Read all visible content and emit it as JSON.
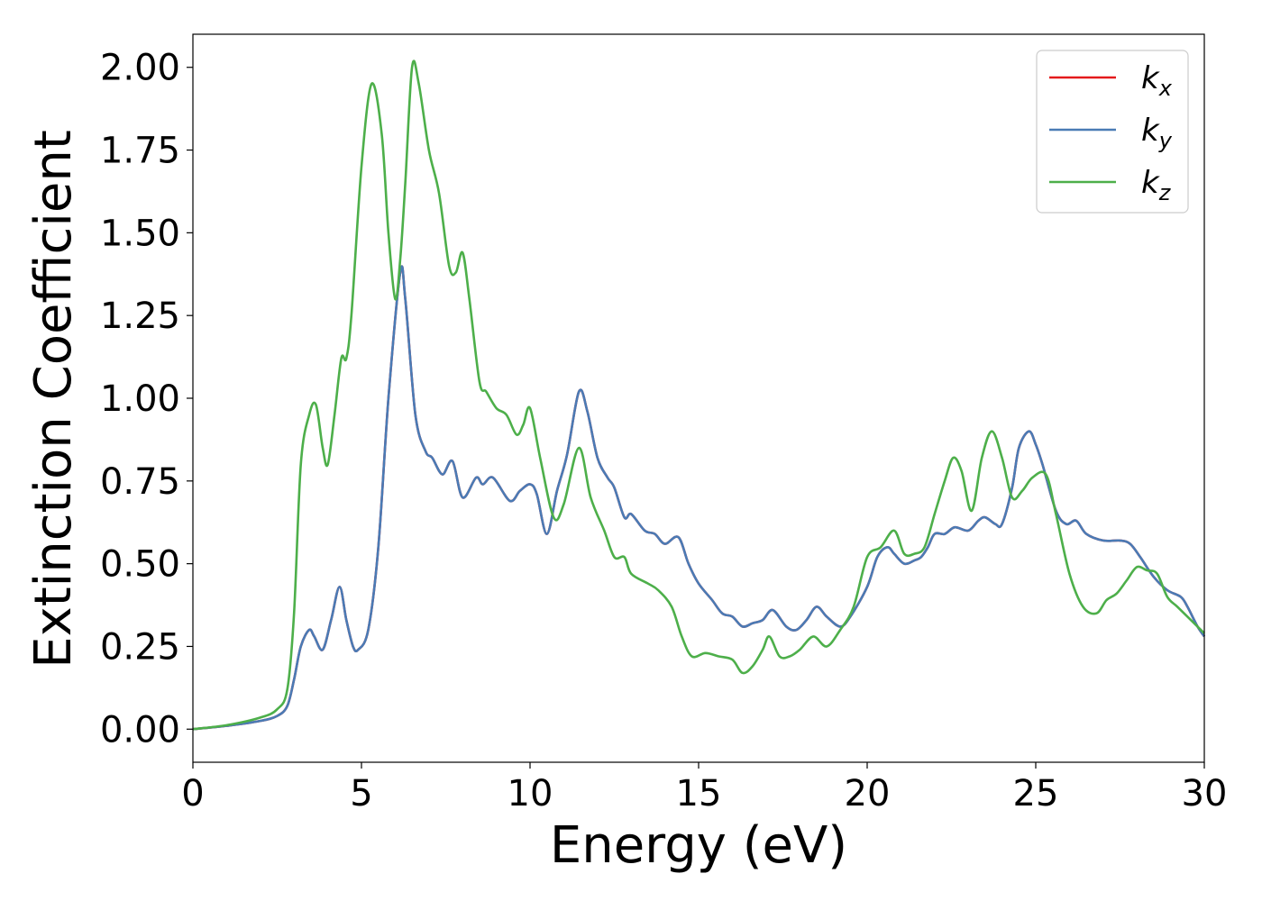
{
  "chart_data": {
    "type": "line",
    "xlabel": "Energy (eV)",
    "ylabel": "Extinction Coefficient",
    "xlim": [
      0,
      30
    ],
    "ylim": [
      -0.1,
      2.1
    ],
    "xticks": [
      0,
      5,
      10,
      15,
      20,
      25,
      30
    ],
    "xtick_labels": [
      "0",
      "5",
      "10",
      "15",
      "20",
      "25",
      "30"
    ],
    "yticks": [
      0,
      0.25,
      0.5,
      0.75,
      1.0,
      1.25,
      1.5,
      1.75,
      2.0
    ],
    "ytick_labels": [
      "0.00",
      "0.25",
      "0.50",
      "0.75",
      "1.00",
      "1.25",
      "1.50",
      "1.75",
      "2.00"
    ],
    "grid": false,
    "legend_position": "top-right",
    "series": [
      {
        "name": "kx",
        "base": "k",
        "sub": "x",
        "color": "#e41a1c",
        "x": [
          0,
          1,
          2,
          2.5,
          2.8,
          3.0,
          3.2,
          3.45,
          3.6,
          3.85,
          4.1,
          4.35,
          4.55,
          4.75,
          4.9,
          5.2,
          5.5,
          5.8,
          6.15,
          6.3,
          6.6,
          6.9,
          7.1,
          7.4,
          7.7,
          8.0,
          8.4,
          8.6,
          8.9,
          9.4,
          9.7,
          10.0,
          10.2,
          10.5,
          10.8,
          11.1,
          11.45,
          11.7,
          12.0,
          12.3,
          12.5,
          12.8,
          13.0,
          13.4,
          13.7,
          14.0,
          14.4,
          14.7,
          15.0,
          15.4,
          15.7,
          16.0,
          16.3,
          16.6,
          16.9,
          17.2,
          17.6,
          17.9,
          18.2,
          18.5,
          18.8,
          19.2,
          19.5,
          20.0,
          20.3,
          20.6,
          20.8,
          21.1,
          21.4,
          21.6,
          21.8,
          22.0,
          22.3,
          22.6,
          23.0,
          23.3,
          23.5,
          23.8,
          24.0,
          24.3,
          24.5,
          24.8,
          25.0,
          25.2,
          25.6,
          25.9,
          26.2,
          26.5,
          27.0,
          27.5,
          27.8,
          28.1,
          28.5,
          28.9,
          29.3,
          29.5,
          29.8,
          30.0
        ],
        "y": [
          0.0,
          0.01,
          0.025,
          0.04,
          0.07,
          0.15,
          0.25,
          0.3,
          0.28,
          0.24,
          0.33,
          0.43,
          0.33,
          0.25,
          0.24,
          0.3,
          0.55,
          1.0,
          1.38,
          1.3,
          0.95,
          0.84,
          0.82,
          0.77,
          0.81,
          0.7,
          0.76,
          0.74,
          0.76,
          0.69,
          0.72,
          0.74,
          0.71,
          0.59,
          0.72,
          0.83,
          1.02,
          0.96,
          0.82,
          0.76,
          0.73,
          0.64,
          0.65,
          0.6,
          0.59,
          0.56,
          0.58,
          0.5,
          0.44,
          0.39,
          0.35,
          0.34,
          0.31,
          0.32,
          0.33,
          0.36,
          0.31,
          0.3,
          0.33,
          0.37,
          0.34,
          0.31,
          0.34,
          0.43,
          0.52,
          0.55,
          0.53,
          0.5,
          0.51,
          0.52,
          0.55,
          0.59,
          0.59,
          0.61,
          0.6,
          0.63,
          0.64,
          0.62,
          0.62,
          0.73,
          0.85,
          0.9,
          0.86,
          0.8,
          0.66,
          0.62,
          0.63,
          0.59,
          0.57,
          0.57,
          0.56,
          0.52,
          0.46,
          0.42,
          0.4,
          0.37,
          0.31,
          0.28
        ]
      },
      {
        "name": "ky",
        "base": "k",
        "sub": "y",
        "color": "#4a7bb5",
        "x": [
          0,
          1,
          2,
          2.5,
          2.8,
          3.0,
          3.2,
          3.45,
          3.6,
          3.85,
          4.1,
          4.35,
          4.55,
          4.75,
          4.9,
          5.2,
          5.5,
          5.8,
          6.15,
          6.3,
          6.6,
          6.9,
          7.1,
          7.4,
          7.7,
          8.0,
          8.4,
          8.6,
          8.9,
          9.4,
          9.7,
          10.0,
          10.2,
          10.5,
          10.8,
          11.1,
          11.45,
          11.7,
          12.0,
          12.3,
          12.5,
          12.8,
          13.0,
          13.4,
          13.7,
          14.0,
          14.4,
          14.7,
          15.0,
          15.4,
          15.7,
          16.0,
          16.3,
          16.6,
          16.9,
          17.2,
          17.6,
          17.9,
          18.2,
          18.5,
          18.8,
          19.2,
          19.5,
          20.0,
          20.3,
          20.6,
          20.8,
          21.1,
          21.4,
          21.6,
          21.8,
          22.0,
          22.3,
          22.6,
          23.0,
          23.3,
          23.5,
          23.8,
          24.0,
          24.3,
          24.5,
          24.8,
          25.0,
          25.2,
          25.6,
          25.9,
          26.2,
          26.5,
          27.0,
          27.5,
          27.8,
          28.1,
          28.5,
          28.9,
          29.3,
          29.5,
          29.8,
          30.0
        ],
        "y": [
          0.0,
          0.01,
          0.025,
          0.04,
          0.07,
          0.15,
          0.25,
          0.3,
          0.28,
          0.24,
          0.33,
          0.43,
          0.33,
          0.25,
          0.24,
          0.3,
          0.55,
          1.0,
          1.38,
          1.3,
          0.95,
          0.84,
          0.82,
          0.77,
          0.81,
          0.7,
          0.76,
          0.74,
          0.76,
          0.69,
          0.72,
          0.74,
          0.71,
          0.59,
          0.72,
          0.83,
          1.02,
          0.96,
          0.82,
          0.76,
          0.73,
          0.64,
          0.65,
          0.6,
          0.59,
          0.56,
          0.58,
          0.5,
          0.44,
          0.39,
          0.35,
          0.34,
          0.31,
          0.32,
          0.33,
          0.36,
          0.31,
          0.3,
          0.33,
          0.37,
          0.34,
          0.31,
          0.34,
          0.43,
          0.52,
          0.55,
          0.53,
          0.5,
          0.51,
          0.52,
          0.55,
          0.59,
          0.59,
          0.61,
          0.6,
          0.63,
          0.64,
          0.62,
          0.62,
          0.73,
          0.85,
          0.9,
          0.86,
          0.8,
          0.66,
          0.62,
          0.63,
          0.59,
          0.57,
          0.57,
          0.56,
          0.52,
          0.46,
          0.42,
          0.4,
          0.37,
          0.31,
          0.28
        ]
      },
      {
        "name": "kz",
        "base": "k",
        "sub": "z",
        "color": "#4daf4a",
        "x": [
          0,
          1,
          2,
          2.5,
          2.8,
          3.0,
          3.2,
          3.45,
          3.65,
          3.85,
          4.0,
          4.2,
          4.4,
          4.55,
          4.7,
          5.0,
          5.3,
          5.6,
          5.8,
          6.0,
          6.15,
          6.3,
          6.5,
          6.7,
          7.0,
          7.3,
          7.6,
          7.8,
          8.0,
          8.2,
          8.5,
          8.7,
          9.0,
          9.3,
          9.6,
          9.8,
          10.0,
          10.3,
          10.7,
          11.0,
          11.45,
          11.8,
          12.2,
          12.5,
          12.8,
          13.0,
          13.5,
          13.8,
          14.2,
          14.5,
          14.8,
          15.2,
          15.6,
          16.0,
          16.3,
          16.6,
          16.9,
          17.1,
          17.4,
          17.7,
          18.0,
          18.4,
          18.8,
          19.2,
          19.6,
          20.0,
          20.4,
          20.8,
          21.1,
          21.4,
          21.7,
          22.0,
          22.3,
          22.55,
          22.8,
          23.1,
          23.4,
          23.7,
          24.0,
          24.3,
          24.6,
          24.9,
          25.3,
          25.6,
          26.0,
          26.4,
          26.8,
          27.1,
          27.4,
          27.7,
          28.0,
          28.3,
          28.6,
          28.9,
          29.2,
          29.6,
          30.0
        ],
        "y": [
          0.0,
          0.012,
          0.035,
          0.06,
          0.12,
          0.35,
          0.8,
          0.95,
          0.98,
          0.85,
          0.8,
          0.95,
          1.12,
          1.12,
          1.25,
          1.7,
          1.95,
          1.8,
          1.5,
          1.3,
          1.42,
          1.65,
          2.0,
          1.95,
          1.75,
          1.62,
          1.4,
          1.38,
          1.44,
          1.3,
          1.05,
          1.02,
          0.97,
          0.95,
          0.89,
          0.92,
          0.97,
          0.82,
          0.64,
          0.68,
          0.85,
          0.7,
          0.6,
          0.52,
          0.52,
          0.47,
          0.44,
          0.42,
          0.37,
          0.28,
          0.22,
          0.23,
          0.22,
          0.21,
          0.17,
          0.19,
          0.24,
          0.28,
          0.22,
          0.22,
          0.24,
          0.28,
          0.25,
          0.3,
          0.37,
          0.52,
          0.55,
          0.6,
          0.53,
          0.53,
          0.55,
          0.65,
          0.75,
          0.82,
          0.78,
          0.66,
          0.82,
          0.9,
          0.82,
          0.7,
          0.72,
          0.76,
          0.77,
          0.65,
          0.47,
          0.37,
          0.35,
          0.39,
          0.41,
          0.45,
          0.49,
          0.48,
          0.47,
          0.4,
          0.37,
          0.33,
          0.29
        ]
      }
    ]
  }
}
